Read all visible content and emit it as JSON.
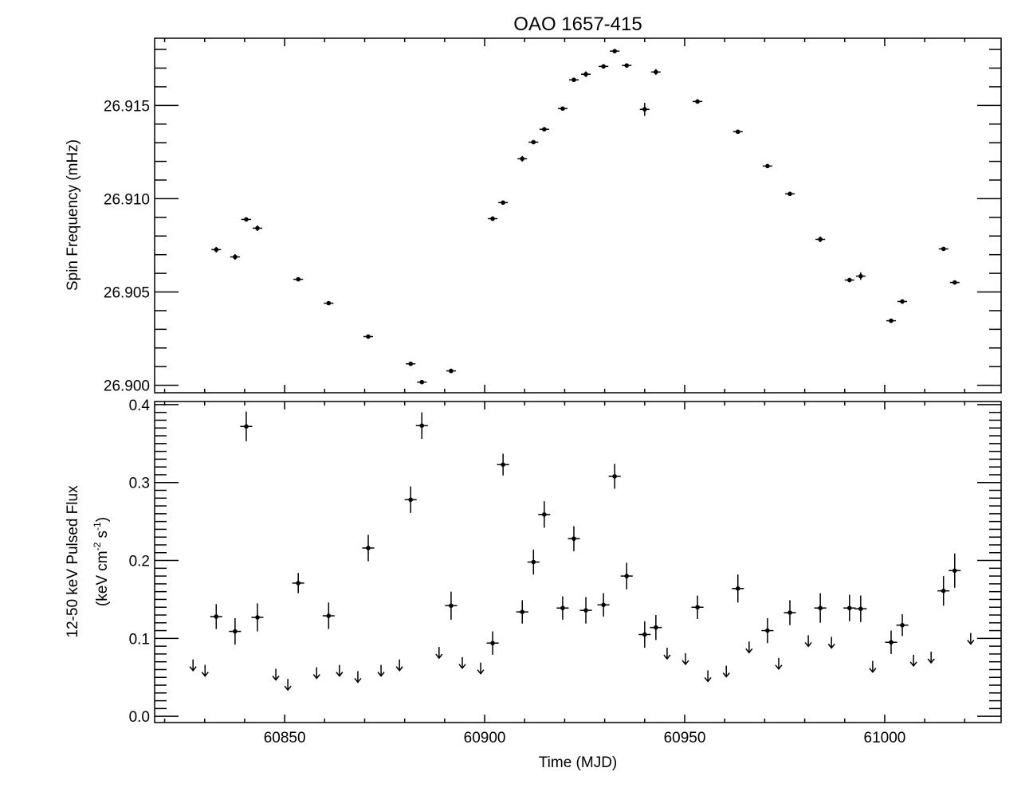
{
  "chart_data": [
    {
      "type": "scatter",
      "panel": "top",
      "title": "OAO 1657-415",
      "xlabel": "",
      "ylabel": "Spin Frequency (mHz)",
      "xlim": [
        60817.5,
        61029.1
      ],
      "ylim": [
        26.8996,
        26.9186
      ],
      "yticks": [
        26.9,
        26.905,
        26.91,
        26.915
      ],
      "ytick_labels": [
        "26.900",
        "26.905",
        "26.910",
        "26.915"
      ],
      "xerr": 1.2,
      "points": [
        [
          60832.9,
          26.90727,
          0.00015
        ],
        [
          60837.6,
          26.90688,
          0.00015
        ],
        [
          60840.4,
          26.90889,
          8e-05
        ],
        [
          60843.2,
          26.90842,
          0.00015
        ],
        [
          60853.4,
          26.90568,
          8e-05
        ],
        [
          60861.0,
          26.9044,
          0.0001
        ],
        [
          60870.9,
          26.90261,
          8e-05
        ],
        [
          60881.5,
          26.90115,
          8e-05
        ],
        [
          60884.3,
          26.90017,
          8e-05
        ],
        [
          60891.6,
          26.90077,
          0.00012
        ],
        [
          60902.0,
          26.90893,
          0.00012
        ],
        [
          60904.6,
          26.90979,
          8e-05
        ],
        [
          60909.4,
          26.91214,
          0.00015
        ],
        [
          60912.2,
          26.91303,
          8e-05
        ],
        [
          60914.9,
          26.91372,
          8e-05
        ],
        [
          60919.5,
          26.91483,
          8e-05
        ],
        [
          60922.3,
          26.91637,
          8e-05
        ],
        [
          60925.3,
          26.91667,
          0.00015
        ],
        [
          60929.7,
          26.91709,
          0.00012
        ],
        [
          60932.5,
          26.91791,
          6e-05
        ],
        [
          60935.5,
          26.91714,
          8e-05
        ],
        [
          60940.0,
          26.91479,
          0.00035
        ],
        [
          60942.8,
          26.91679,
          0.00015
        ],
        [
          60953.2,
          26.91521,
          0.00012
        ],
        [
          60963.3,
          26.91359,
          8e-05
        ],
        [
          60970.7,
          26.91175,
          0.0001
        ],
        [
          60976.3,
          26.91026,
          0.0001
        ],
        [
          60983.9,
          26.90782,
          0.00015
        ],
        [
          60991.2,
          26.90564,
          0.00012
        ],
        [
          60994.0,
          26.90585,
          0.0002
        ],
        [
          61001.6,
          26.90346,
          0.0001
        ],
        [
          61004.4,
          26.90449,
          0.00012
        ],
        [
          61014.7,
          26.90731,
          8e-05
        ],
        [
          61017.5,
          26.90551,
          0.0001
        ]
      ]
    },
    {
      "type": "scatter",
      "panel": "bottom",
      "xlabel": "Time (MJD)",
      "ylabel_line1": "12-50 keV Pulsed Flux",
      "ylabel_line2": "(keV cm",
      "ylabel_sup1": "-2",
      "ylabel_mid": " s",
      "ylabel_sup2": "-1",
      "ylabel_end": ")",
      "xlim": [
        60817.5,
        61029.1
      ],
      "ylim": [
        -0.008,
        0.404
      ],
      "xticks": [
        60850,
        60900,
        60950,
        61000
      ],
      "xtick_labels": [
        "60850",
        "60900",
        "60950",
        "61000"
      ],
      "yticks": [
        0.0,
        0.1,
        0.2,
        0.3,
        0.4
      ],
      "ytick_labels": [
        "0.0",
        "0.1",
        "0.2",
        "0.3",
        "0.4"
      ],
      "xerr": 1.5,
      "points": [
        [
          60832.9,
          0.128,
          0.016
        ],
        [
          60837.6,
          0.109,
          0.017
        ],
        [
          60840.4,
          0.372,
          0.019
        ],
        [
          60843.2,
          0.127,
          0.018
        ],
        [
          60853.4,
          0.171,
          0.013
        ],
        [
          60861.0,
          0.129,
          0.017
        ],
        [
          60870.9,
          0.216,
          0.017
        ],
        [
          60881.5,
          0.278,
          0.017
        ],
        [
          60884.3,
          0.373,
          0.017
        ],
        [
          60891.6,
          0.142,
          0.018
        ],
        [
          60902.0,
          0.094,
          0.015
        ],
        [
          60904.6,
          0.323,
          0.014
        ],
        [
          60909.4,
          0.134,
          0.015
        ],
        [
          60912.2,
          0.198,
          0.016
        ],
        [
          60914.9,
          0.259,
          0.017
        ],
        [
          60919.5,
          0.139,
          0.015
        ],
        [
          60922.3,
          0.228,
          0.016
        ],
        [
          60925.3,
          0.136,
          0.017
        ],
        [
          60929.7,
          0.143,
          0.015
        ],
        [
          60932.5,
          0.308,
          0.016
        ],
        [
          60935.5,
          0.18,
          0.017
        ],
        [
          60940.0,
          0.105,
          0.017
        ],
        [
          60942.8,
          0.114,
          0.016
        ],
        [
          60953.2,
          0.14,
          0.015
        ],
        [
          60963.3,
          0.164,
          0.018
        ],
        [
          60970.7,
          0.11,
          0.016
        ],
        [
          60976.3,
          0.133,
          0.016
        ],
        [
          60983.9,
          0.139,
          0.019
        ],
        [
          60991.2,
          0.139,
          0.017
        ],
        [
          60994.0,
          0.138,
          0.017
        ],
        [
          61001.6,
          0.095,
          0.015
        ],
        [
          61004.4,
          0.117,
          0.014
        ],
        [
          61014.7,
          0.161,
          0.019
        ],
        [
          61017.5,
          0.187,
          0.022
        ]
      ],
      "upper_limits": [
        [
          60827.1,
          0.073
        ],
        [
          60830.1,
          0.066
        ],
        [
          60847.8,
          0.061
        ],
        [
          60850.8,
          0.048
        ],
        [
          60858.0,
          0.063
        ],
        [
          60863.7,
          0.066
        ],
        [
          60868.3,
          0.058
        ],
        [
          60874.1,
          0.066
        ],
        [
          60878.7,
          0.073
        ],
        [
          60888.6,
          0.089
        ],
        [
          60894.4,
          0.076
        ],
        [
          60899.0,
          0.069
        ],
        [
          60945.6,
          0.088
        ],
        [
          60950.2,
          0.081
        ],
        [
          60955.8,
          0.059
        ],
        [
          60960.4,
          0.065
        ],
        [
          60966.1,
          0.096
        ],
        [
          60973.5,
          0.075
        ],
        [
          60980.9,
          0.104
        ],
        [
          60986.7,
          0.102
        ],
        [
          60997.0,
          0.071
        ],
        [
          61007.2,
          0.079
        ],
        [
          61011.6,
          0.083
        ],
        [
          61021.5,
          0.107
        ]
      ]
    }
  ]
}
